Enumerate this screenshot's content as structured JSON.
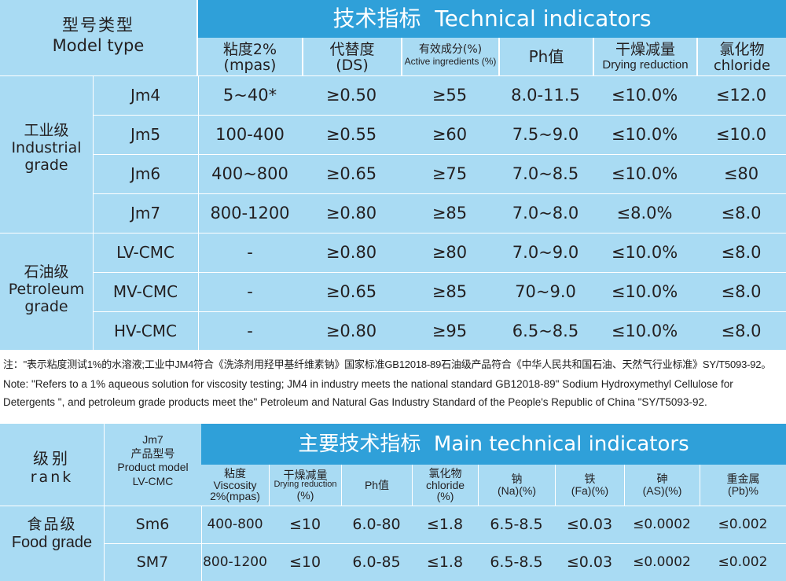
{
  "table1": {
    "corner_zh": "型号类型",
    "corner_en": "Model type",
    "title": "技术指标  Technical indicators",
    "columns": [
      {
        "zh": "粘度2%",
        "en": "(mpas)"
      },
      {
        "zh": "代替度",
        "en": "(DS)"
      },
      {
        "zh": "有效成分(%)",
        "en": "Active ingredients (%)"
      },
      {
        "zh": "Ph值",
        "en": ""
      },
      {
        "zh": "干燥减量",
        "en": "Drying reduction"
      },
      {
        "zh": "氯化物",
        "en": "chloride"
      }
    ],
    "groups": [
      {
        "zh": "工业级",
        "en1": "Industrial",
        "en2": "grade"
      },
      {
        "zh": "石油级",
        "en1": "Petroleum",
        "en2": "grade"
      }
    ],
    "rows": [
      [
        "Jm4",
        "5~40*",
        "≥0.50",
        "≥55",
        "8.0-11.5",
        "≤10.0%",
        "≤12.0"
      ],
      [
        "Jm5",
        "100-400",
        "≥0.55",
        "≥60",
        "7.5~9.0",
        "≤10.0%",
        "≤10.0"
      ],
      [
        "Jm6",
        "400~800",
        "≥0.65",
        "≥75",
        "7.0~8.5",
        "≤10.0%",
        "≤80"
      ],
      [
        "Jm7",
        "800-1200",
        "≥0.80",
        "≥85",
        "7.0~8.0",
        "≤8.0%",
        "≤8.0"
      ],
      [
        "LV-CMC",
        "-",
        "≥0.80",
        "≥80",
        "7.0~9.0",
        "≤10.0%",
        "≤8.0"
      ],
      [
        "MV-CMC",
        "-",
        "≥0.65",
        "≥85",
        "70~9.0",
        "≤10.0%",
        "≤8.0"
      ],
      [
        "HV-CMC",
        "-",
        "≥0.80",
        "≥95",
        "6.5~8.5",
        "≤10.0%",
        "≤8.0"
      ]
    ]
  },
  "note": {
    "zh": "注：\"表示粘度测试1%的水溶液;工业中JM4符合《洗涤剂用羟甲基纤维素钠》国家标准GB12018-89石油级产品符合《中华人民共和国石油、天然气行业标准》SY/T5093-92。",
    "en1": "Note: \"Refers to a 1% aqueous solution for viscosity testing; JM4 in industry meets the national standard GB12018-89\" Sodium Hydroxymethyl Cellulose for",
    "en2": "Detergents \", and petroleum grade products meet the\" Petroleum and Natural Gas Industry Standard of the People's Republic of China \"SY/T5093-92."
  },
  "table2": {
    "rank_zh": "级别",
    "rank_en": "rank",
    "model_lines": [
      "Jm7",
      "产品型号",
      "Product model",
      "LV-CMC"
    ],
    "title": "主要技术指标  Main technical indicators",
    "columns": [
      [
        "粘度",
        "Viscosity",
        "2%(mpas)"
      ],
      [
        "干燥减量",
        "Drying reduction",
        "(%)"
      ],
      [
        "Ph值"
      ],
      [
        "氯化物",
        "chloride",
        "(%)"
      ],
      [
        "钠",
        "(Na)(%)"
      ],
      [
        "铁",
        "(Fa)(%)"
      ],
      [
        "砷",
        "(AS)(%)"
      ],
      [
        "重金属",
        "(Pb)%"
      ]
    ],
    "group": {
      "zh": "食品级",
      "en": "Food grade"
    },
    "rows": [
      [
        "Sm6",
        "400-800",
        "≤10",
        "6.0-80",
        "≤1.8",
        "6.5-8.5",
        "≤0.03",
        "≤0.0002",
        "≤0.002"
      ],
      [
        "SM7",
        "800-1200",
        "≤10",
        "6.0-85",
        "≤1.8",
        "6.5-8.5",
        "≤0.03",
        "≤0.0002",
        "≤0.002"
      ]
    ]
  }
}
